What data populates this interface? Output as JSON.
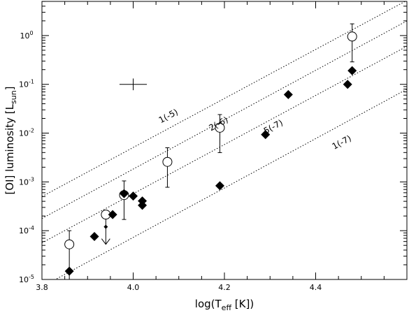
{
  "chart_data": {
    "type": "scatter",
    "xlabel": {
      "main": "log(T",
      "sub": "eff",
      "tail": " [K])"
    },
    "ylabel": {
      "main": "[OI] luminosity [L",
      "sub": "sun",
      "tail": "]"
    },
    "xlim": [
      3.8,
      4.6
    ],
    "ylim_log10": [
      -5,
      0.7
    ],
    "y_log": true,
    "x_ticks": [
      {
        "value": 3.8,
        "label": "3.8"
      },
      {
        "value": 4.0,
        "label": "4.0"
      },
      {
        "value": 4.2,
        "label": "4.2"
      },
      {
        "value": 4.4,
        "label": "4.4"
      }
    ],
    "x_minor_step": 0.05,
    "y_ticks": [
      {
        "exp": -5,
        "base": "10",
        "power": "-5"
      },
      {
        "exp": -4,
        "base": "10",
        "power": "-4"
      },
      {
        "exp": -3,
        "base": "10",
        "power": "-3"
      },
      {
        "exp": -2,
        "base": "10",
        "power": "-2"
      },
      {
        "exp": -1,
        "base": "10",
        "power": "-1"
      },
      {
        "exp": 0,
        "base": "10",
        "power": "0"
      }
    ],
    "reference_lines": [
      {
        "label": "1(-5)",
        "points": [
          [
            3.8,
            -3.3
          ],
          [
            4.6,
            0.72
          ]
        ],
        "label_at": [
          4.08,
          -1.7
        ]
      },
      {
        "label": "2(-6)",
        "points": [
          [
            3.8,
            -3.75
          ],
          [
            4.6,
            0.3
          ]
        ],
        "label_at": [
          4.19,
          -1.86
        ]
      },
      {
        "label": "5(-7)",
        "points": [
          [
            3.8,
            -4.25
          ],
          [
            4.6,
            -0.22
          ]
        ],
        "label_at": [
          4.31,
          -1.92
        ]
      },
      {
        "label": "1(-7)",
        "points": [
          [
            3.8,
            -5.15
          ],
          [
            4.6,
            -1.1
          ]
        ],
        "label_at": [
          4.46,
          -2.24
        ]
      }
    ],
    "open_circles": [
      {
        "x": 3.86,
        "logy": -4.28,
        "err_low": -5.0,
        "err_high": -4.0
      },
      {
        "x": 3.94,
        "logy": -3.67,
        "err_low": -3.67,
        "err_high": -3.67
      },
      {
        "x": 3.98,
        "logy": -3.27,
        "err_low": -3.77,
        "err_high": -2.98
      },
      {
        "x": 4.075,
        "logy": -2.59,
        "err_low": -3.11,
        "err_high": -2.3
      },
      {
        "x": 4.19,
        "logy": -1.89,
        "err_low": -2.4,
        "err_high": -1.62
      },
      {
        "x": 4.48,
        "logy": -0.02,
        "err_low": -0.54,
        "err_high": 0.24
      }
    ],
    "filled_diamonds": [
      {
        "x": 3.86,
        "logy": -4.83
      },
      {
        "x": 3.915,
        "logy": -4.12
      },
      {
        "x": 3.955,
        "logy": -3.67
      },
      {
        "x": 3.98,
        "logy": -3.24
      },
      {
        "x": 4.0,
        "logy": -3.29
      },
      {
        "x": 4.02,
        "logy": -3.39
      },
      {
        "x": 4.02,
        "logy": -3.48
      },
      {
        "x": 4.19,
        "logy": -3.08
      },
      {
        "x": 4.29,
        "logy": -2.03
      },
      {
        "x": 4.34,
        "logy": -1.21
      },
      {
        "x": 4.47,
        "logy": -1.0
      },
      {
        "x": 4.48,
        "logy": -0.72
      }
    ],
    "small_diamond": {
      "x": 3.94,
      "logy": -3.92
    },
    "upper_limit": {
      "x": 3.94,
      "logy_top": -3.67,
      "logy_bottom": -4.28
    },
    "error_cross": {
      "x": 4.0,
      "logy": -1.0,
      "dx": 0.03,
      "dlogy": 0.12
    }
  }
}
